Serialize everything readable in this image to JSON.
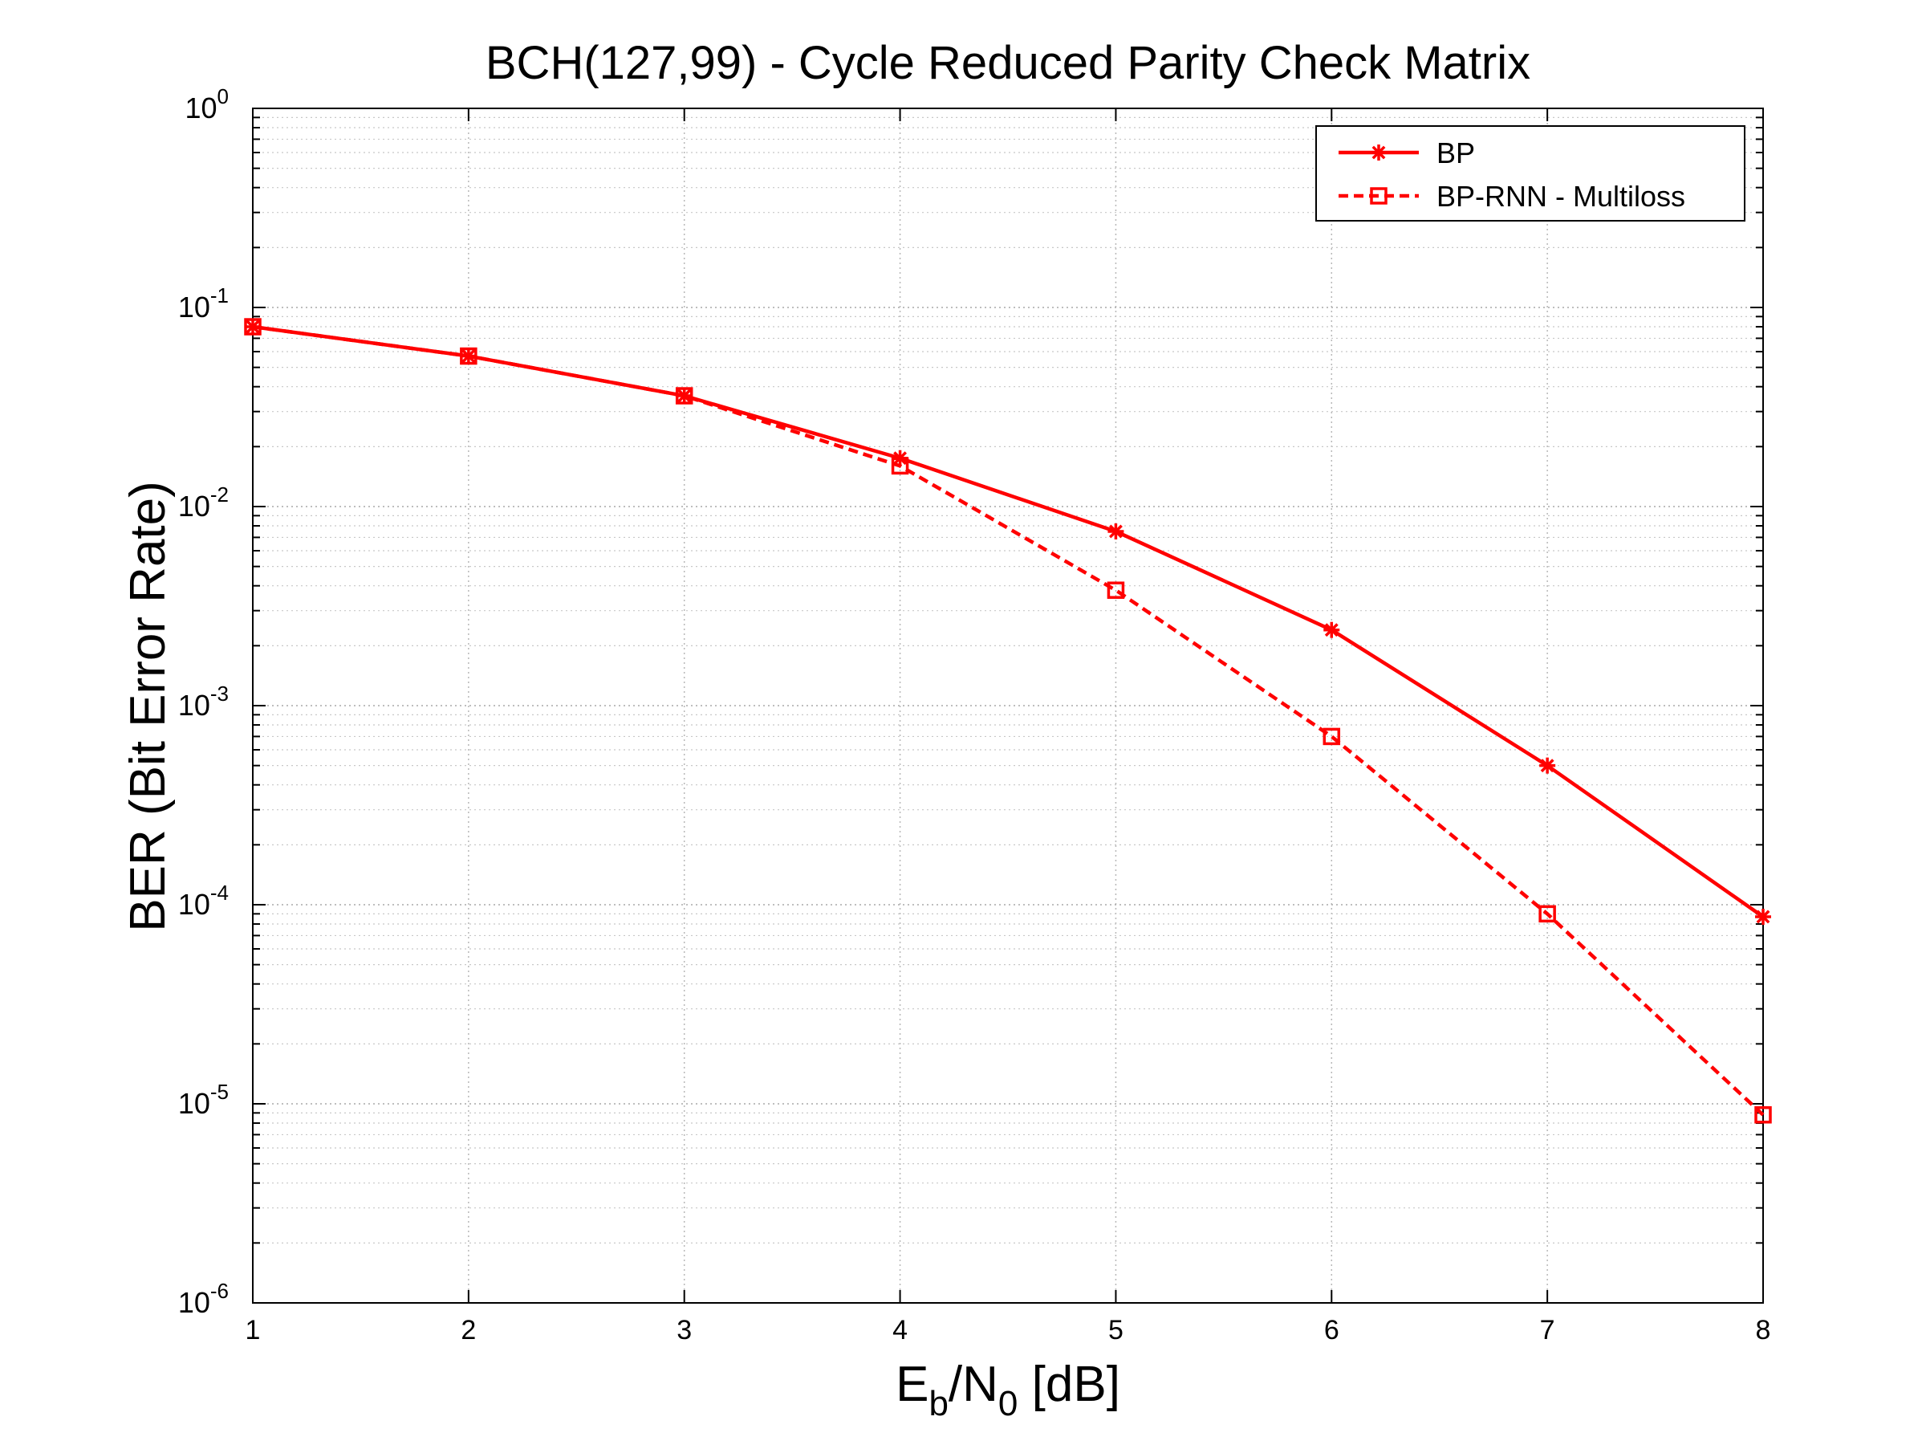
{
  "chart_data": {
    "type": "line",
    "title": "BCH(127,99) - Cycle Reduced Parity Check Matrix",
    "xlabel": {
      "main": "E",
      "sub1": "b",
      "mid": "/N",
      "sub2": "0",
      "tail": " [dB]"
    },
    "ylabel": "BER (Bit Error Rate)",
    "x_scale": "linear",
    "y_scale": "log",
    "xlim": [
      1,
      8
    ],
    "ylim": [
      1e-06,
      1
    ],
    "x_ticks": [
      "1",
      "2",
      "3",
      "4",
      "5",
      "6",
      "7",
      "8"
    ],
    "y_ticks": [
      {
        "value": 1,
        "base": "10",
        "exp": "0"
      },
      {
        "value": 0.1,
        "base": "10",
        "exp": "-1"
      },
      {
        "value": 0.01,
        "base": "10",
        "exp": "-2"
      },
      {
        "value": 0.001,
        "base": "10",
        "exp": "-3"
      },
      {
        "value": 0.0001,
        "base": "10",
        "exp": "-4"
      },
      {
        "value": 1e-05,
        "base": "10",
        "exp": "-5"
      },
      {
        "value": 1e-06,
        "base": "10",
        "exp": "-6"
      }
    ],
    "grid": true,
    "legend_position": "top-right",
    "x": [
      1,
      2,
      3,
      4,
      5,
      6,
      7,
      8
    ],
    "series": [
      {
        "name": "BP",
        "color": "#ff0000",
        "line_style": "solid",
        "marker": "asterisk",
        "values": [
          0.08,
          0.057,
          0.036,
          0.0175,
          0.0075,
          0.0024,
          0.0005,
          8.7e-05
        ]
      },
      {
        "name": "BP-RNN - Multiloss",
        "color": "#ff0000",
        "line_style": "dashed",
        "marker": "square",
        "values": [
          0.08,
          0.057,
          0.036,
          0.016,
          0.0038,
          0.0007,
          9e-05,
          8.8e-06
        ]
      }
    ]
  }
}
